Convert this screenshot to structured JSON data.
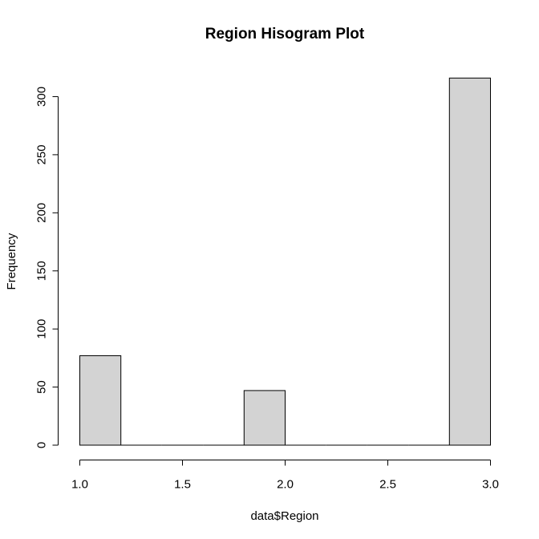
{
  "chart_data": {
    "type": "bar",
    "title": "Region Hisogram Plot",
    "xlabel": "data$Region",
    "ylabel": "Frequency",
    "xlim": [
      1.0,
      3.0
    ],
    "ylim": [
      0,
      320
    ],
    "x_ticks": [
      "1.0",
      "1.5",
      "2.0",
      "2.5",
      "3.0"
    ],
    "y_ticks": [
      "0",
      "50",
      "100",
      "150",
      "200",
      "250",
      "300"
    ],
    "bins": [
      {
        "from": 1.0,
        "to": 1.2,
        "count": 77
      },
      {
        "from": 1.2,
        "to": 1.4,
        "count": 0
      },
      {
        "from": 1.4,
        "to": 1.6,
        "count": 0
      },
      {
        "from": 1.6,
        "to": 1.8,
        "count": 0
      },
      {
        "from": 1.8,
        "to": 2.0,
        "count": 47
      },
      {
        "from": 2.0,
        "to": 2.2,
        "count": 0
      },
      {
        "from": 2.2,
        "to": 2.4,
        "count": 0
      },
      {
        "from": 2.4,
        "to": 2.6,
        "count": 0
      },
      {
        "from": 2.6,
        "to": 2.8,
        "count": 0
      },
      {
        "from": 2.8,
        "to": 3.0,
        "count": 316
      }
    ],
    "bar_color": "#d3d3d3",
    "border_color": "#000000",
    "grid": false,
    "legend": "none"
  }
}
